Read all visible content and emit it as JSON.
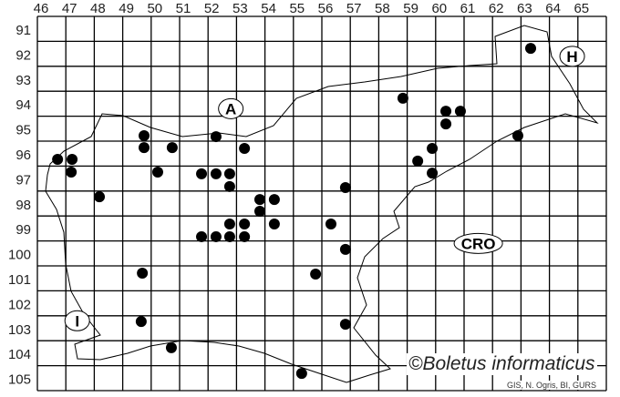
{
  "map": {
    "columns": [
      "46",
      "47",
      "48",
      "49",
      "50",
      "51",
      "52",
      "53",
      "54",
      "55",
      "56",
      "57",
      "58",
      "59",
      "60",
      "61",
      "62",
      "63",
      "64",
      "65"
    ],
    "rows": [
      "91",
      "92",
      "93",
      "94",
      "95",
      "96",
      "97",
      "98",
      "99",
      "100",
      "101",
      "102",
      "103",
      "104",
      "105"
    ],
    "country_labels": [
      {
        "text": "A",
        "col": 52.8,
        "row": 94.7
      },
      {
        "text": "H",
        "col": 64.8,
        "row": 92.6
      },
      {
        "text": "CRO",
        "col": 61.5,
        "row": 100.1
      },
      {
        "text": "I",
        "col": 47.4,
        "row": 103.2
      }
    ],
    "records": [
      [
        46.71,
        96.73
      ],
      [
        47.22,
        96.73
      ],
      [
        47.19,
        97.24
      ],
      [
        48.18,
        98.23
      ],
      [
        49.75,
        95.78
      ],
      [
        49.75,
        96.26
      ],
      [
        50.74,
        96.26
      ],
      [
        50.23,
        97.24
      ],
      [
        52.28,
        95.82
      ],
      [
        53.28,
        96.29
      ],
      [
        51.77,
        97.31
      ],
      [
        52.28,
        97.31
      ],
      [
        52.76,
        97.31
      ],
      [
        52.76,
        97.82
      ],
      [
        53.82,
        98.34
      ],
      [
        54.33,
        98.34
      ],
      [
        53.82,
        98.81
      ],
      [
        53.28,
        99.32
      ],
      [
        52.76,
        99.32
      ],
      [
        54.33,
        99.32
      ],
      [
        51.77,
        99.83
      ],
      [
        52.28,
        99.83
      ],
      [
        52.76,
        99.83
      ],
      [
        53.28,
        99.83
      ],
      [
        56.32,
        99.32
      ],
      [
        56.83,
        97.86
      ],
      [
        58.85,
        94.28
      ],
      [
        60.36,
        94.8
      ],
      [
        60.87,
        94.8
      ],
      [
        60.36,
        95.31
      ],
      [
        59.88,
        96.29
      ],
      [
        59.37,
        96.8
      ],
      [
        59.88,
        97.28
      ],
      [
        62.89,
        95.78
      ],
      [
        63.34,
        92.28
      ],
      [
        56.83,
        100.34
      ],
      [
        55.78,
        101.33
      ],
      [
        49.69,
        101.29
      ],
      [
        49.65,
        103.23
      ],
      [
        50.71,
        104.28
      ],
      [
        56.83,
        103.34
      ],
      [
        55.29,
        105.31
      ]
    ],
    "dot_color": "#000000",
    "copyright": "©Boletus informaticus",
    "credit": "GIS, N. Ogris, BI, GURS"
  }
}
